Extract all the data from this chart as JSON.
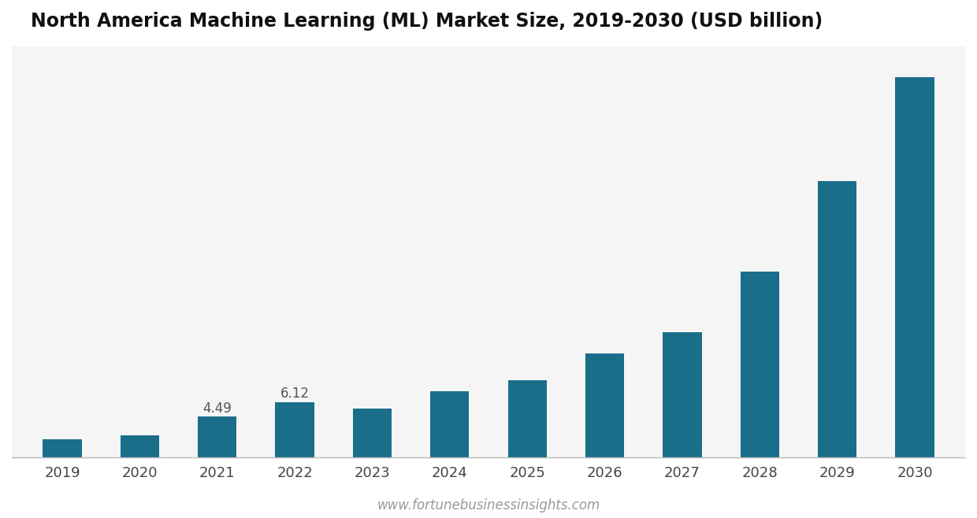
{
  "title": "North America Machine Learning (ML) Market Size, 2019-2030 (USD billion)",
  "years": [
    2019,
    2020,
    2021,
    2022,
    2023,
    2024,
    2025,
    2026,
    2027,
    2028,
    2029,
    2030
  ],
  "values": [
    2.0,
    2.4,
    4.49,
    6.12,
    5.4,
    7.3,
    8.5,
    11.5,
    13.8,
    20.5,
    30.5,
    42.0
  ],
  "bar_color": "#1a6e8a",
  "background_color": "#ffffff",
  "plot_bg_color": "#f5f5f5",
  "annotations": [
    {
      "year": 2021,
      "value": 4.49,
      "label": "4.49"
    },
    {
      "year": 2022,
      "value": 6.12,
      "label": "6.12"
    }
  ],
  "watermark": "www.fortunebusinessinsights.com",
  "title_fontsize": 17,
  "tick_fontsize": 13,
  "annotation_fontsize": 12,
  "watermark_fontsize": 12
}
